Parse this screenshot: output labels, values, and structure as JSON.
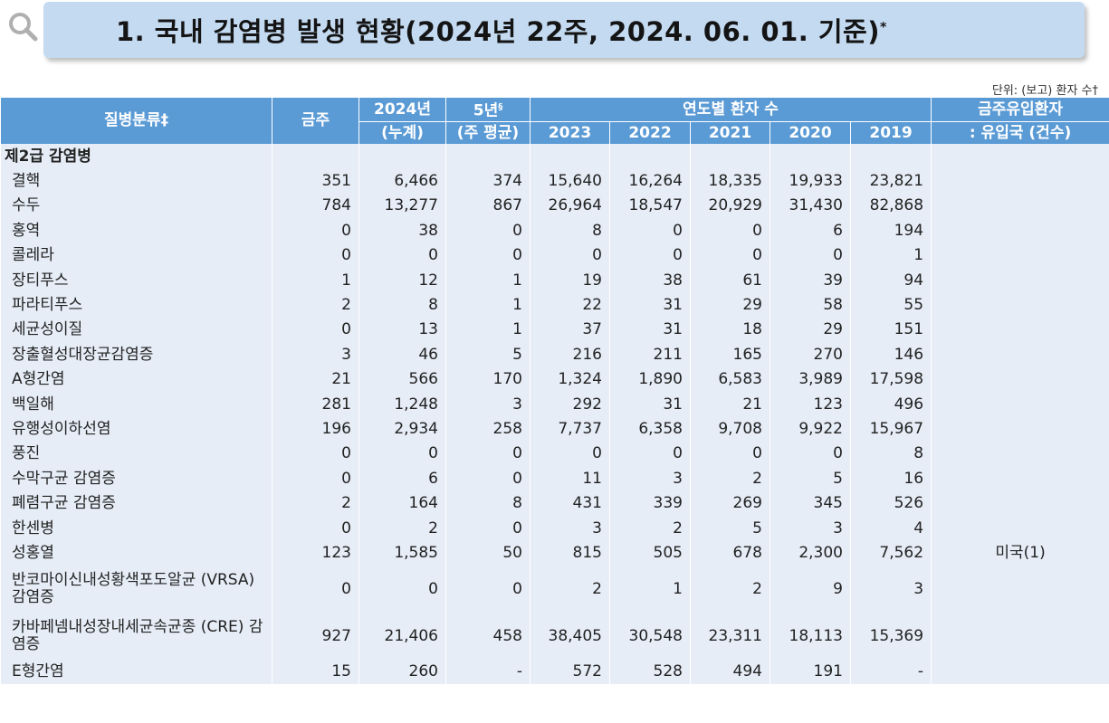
{
  "title": "1. 국내 감염병 발생 현황(2024년 22주, 2024. 06. 01. 기준)",
  "title_mark": "*",
  "unit_note": "단위: (보고) 환자 수†",
  "colors": {
    "header": "#5b9bd5",
    "row_bg": "#e6edf7",
    "title_bg": "#c4daf1"
  },
  "headers": {
    "disease": "질병분류‡",
    "this_week": "금주",
    "cumulative_line1": "2024년",
    "cumulative_line2": "(누계)",
    "avg_line1": "5년",
    "avg_mark": "§",
    "avg_line2": "(주 평균)",
    "yearly_group": "연도별 환자 수",
    "years": [
      "2023",
      "2022",
      "2021",
      "2020",
      "2019"
    ],
    "imported_line1": "금주유입환자",
    "imported_line2": ": 유입국 (건수)"
  },
  "section": "제2급 감염병",
  "rows": [
    {
      "name": "결핵",
      "week": "351",
      "cum": "6,466",
      "avg": "374",
      "y2023": "15,640",
      "y2022": "16,264",
      "y2021": "18,335",
      "y2020": "19,933",
      "y2019": "23,821",
      "imported": ""
    },
    {
      "name": "수두",
      "week": "784",
      "cum": "13,277",
      "avg": "867",
      "y2023": "26,964",
      "y2022": "18,547",
      "y2021": "20,929",
      "y2020": "31,430",
      "y2019": "82,868",
      "imported": ""
    },
    {
      "name": "홍역",
      "week": "0",
      "cum": "38",
      "avg": "0",
      "y2023": "8",
      "y2022": "0",
      "y2021": "0",
      "y2020": "6",
      "y2019": "194",
      "imported": ""
    },
    {
      "name": "콜레라",
      "week": "0",
      "cum": "0",
      "avg": "0",
      "y2023": "0",
      "y2022": "0",
      "y2021": "0",
      "y2020": "0",
      "y2019": "1",
      "imported": ""
    },
    {
      "name": "장티푸스",
      "week": "1",
      "cum": "12",
      "avg": "1",
      "y2023": "19",
      "y2022": "38",
      "y2021": "61",
      "y2020": "39",
      "y2019": "94",
      "imported": ""
    },
    {
      "name": "파라티푸스",
      "week": "2",
      "cum": "8",
      "avg": "1",
      "y2023": "22",
      "y2022": "31",
      "y2021": "29",
      "y2020": "58",
      "y2019": "55",
      "imported": ""
    },
    {
      "name": "세균성이질",
      "week": "0",
      "cum": "13",
      "avg": "1",
      "y2023": "37",
      "y2022": "31",
      "y2021": "18",
      "y2020": "29",
      "y2019": "151",
      "imported": ""
    },
    {
      "name": "장출혈성대장균감염증",
      "week": "3",
      "cum": "46",
      "avg": "5",
      "y2023": "216",
      "y2022": "211",
      "y2021": "165",
      "y2020": "270",
      "y2019": "146",
      "imported": ""
    },
    {
      "name": "A형간염",
      "week": "21",
      "cum": "566",
      "avg": "170",
      "y2023": "1,324",
      "y2022": "1,890",
      "y2021": "6,583",
      "y2020": "3,989",
      "y2019": "17,598",
      "imported": ""
    },
    {
      "name": "백일해",
      "week": "281",
      "cum": "1,248",
      "avg": "3",
      "y2023": "292",
      "y2022": "31",
      "y2021": "21",
      "y2020": "123",
      "y2019": "496",
      "imported": ""
    },
    {
      "name": "유행성이하선염",
      "week": "196",
      "cum": "2,934",
      "avg": "258",
      "y2023": "7,737",
      "y2022": "6,358",
      "y2021": "9,708",
      "y2020": "9,922",
      "y2019": "15,967",
      "imported": ""
    },
    {
      "name": "풍진",
      "week": "0",
      "cum": "0",
      "avg": "0",
      "y2023": "0",
      "y2022": "0",
      "y2021": "0",
      "y2020": "0",
      "y2019": "8",
      "imported": ""
    },
    {
      "name": "수막구균 감염증",
      "week": "0",
      "cum": "6",
      "avg": "0",
      "y2023": "11",
      "y2022": "3",
      "y2021": "2",
      "y2020": "5",
      "y2019": "16",
      "imported": ""
    },
    {
      "name": "폐렴구균 감염증",
      "week": "2",
      "cum": "164",
      "avg": "8",
      "y2023": "431",
      "y2022": "339",
      "y2021": "269",
      "y2020": "345",
      "y2019": "526",
      "imported": ""
    },
    {
      "name": "한센병",
      "week": "0",
      "cum": "2",
      "avg": "0",
      "y2023": "3",
      "y2022": "2",
      "y2021": "5",
      "y2020": "3",
      "y2019": "4",
      "imported": ""
    },
    {
      "name": "성홍열",
      "week": "123",
      "cum": "1,585",
      "avg": "50",
      "y2023": "815",
      "y2022": "505",
      "y2021": "678",
      "y2020": "2,300",
      "y2019": "7,562",
      "imported": "미국(1)"
    },
    {
      "name": "반코마이신내성황색포도알균 (VRSA) 감염증",
      "week": "0",
      "cum": "0",
      "avg": "0",
      "y2023": "2",
      "y2022": "1",
      "y2021": "2",
      "y2020": "9",
      "y2019": "3",
      "imported": "",
      "tall": true
    },
    {
      "name": "카바페넴내성장내세균속균종 (CRE) 감염증",
      "week": "927",
      "cum": "21,406",
      "avg": "458",
      "y2023": "38,405",
      "y2022": "30,548",
      "y2021": "23,311",
      "y2020": "18,113",
      "y2019": "15,369",
      "imported": "",
      "tall": true
    },
    {
      "name": "E형간염",
      "week": "15",
      "cum": "260",
      "avg": "-",
      "y2023": "572",
      "y2022": "528",
      "y2021": "494",
      "y2020": "191",
      "y2019": "-",
      "imported": ""
    }
  ]
}
